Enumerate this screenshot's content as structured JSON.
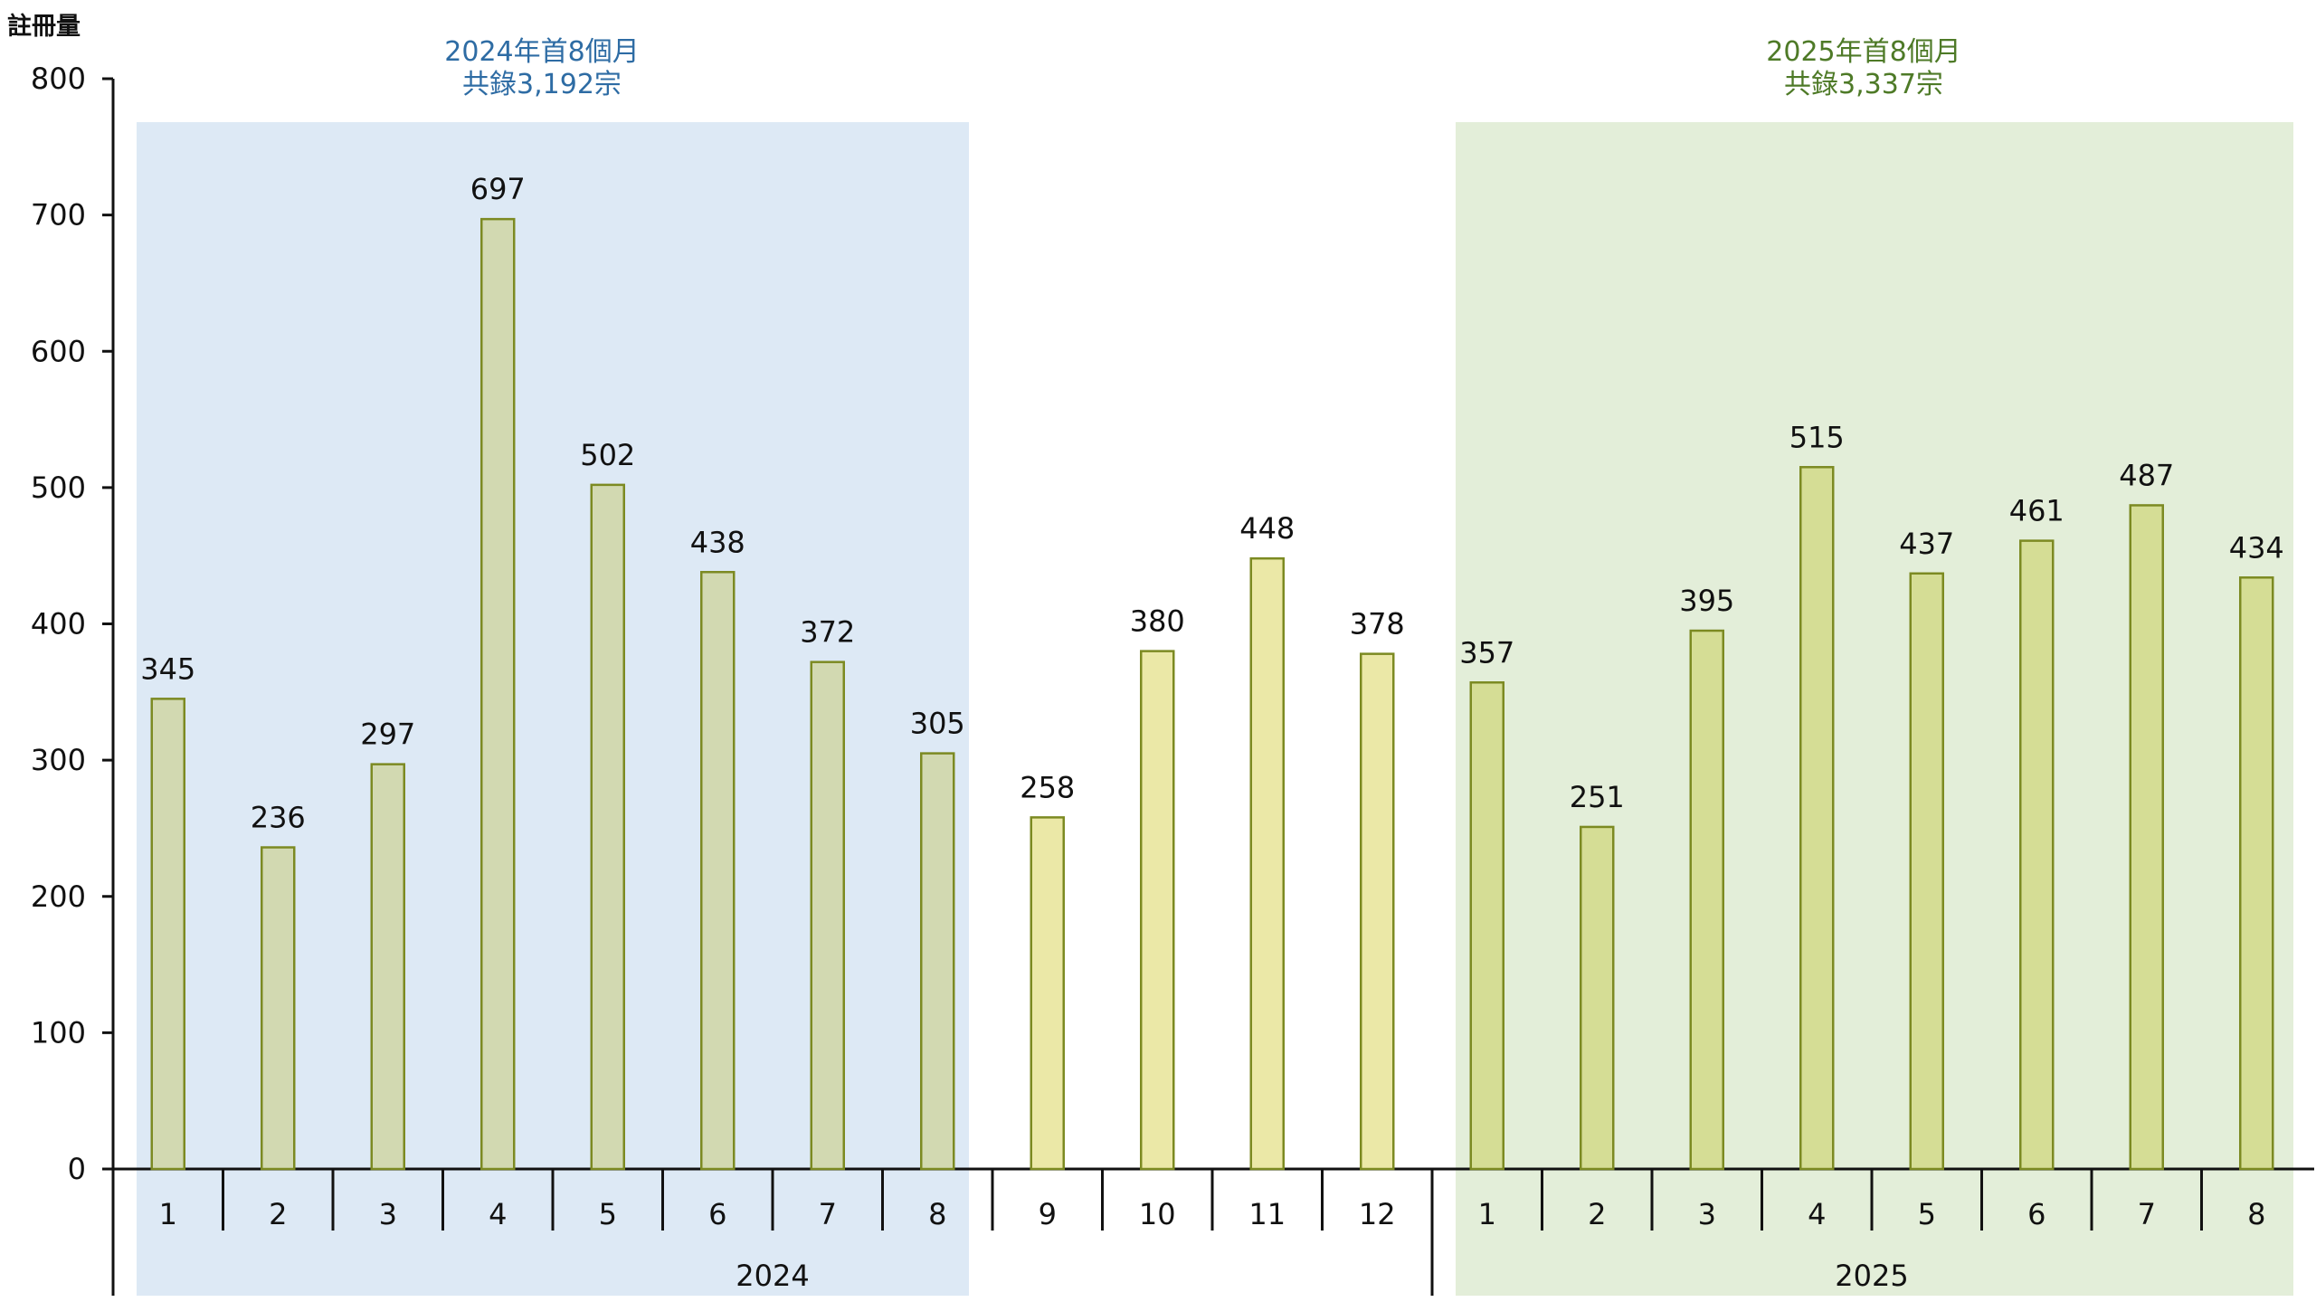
{
  "chart_data": {
    "type": "bar",
    "ylabel": "註冊量",
    "ylim": [
      0,
      800
    ],
    "yticks": [
      0,
      100,
      200,
      300,
      400,
      500,
      600,
      700,
      800
    ],
    "grid": false,
    "legend": "none",
    "categories": [
      "1",
      "2",
      "3",
      "4",
      "5",
      "6",
      "7",
      "8",
      "9",
      "10",
      "11",
      "12",
      "1",
      "2",
      "3",
      "4",
      "5",
      "6",
      "7",
      "8"
    ],
    "values": [
      345,
      236,
      297,
      697,
      502,
      438,
      372,
      305,
      258,
      380,
      448,
      378,
      357,
      251,
      395,
      515,
      437,
      461,
      487,
      434
    ],
    "year_groups": [
      {
        "label": "2024",
        "start": 0,
        "end": 11
      },
      {
        "label": "2025",
        "start": 12,
        "end": 19
      }
    ],
    "highlight_regions": [
      {
        "start": 0,
        "end": 7,
        "line1": "2024年首8個月",
        "line2": "共錄3,192宗",
        "fill": "#dde9f5",
        "text_color": "#2e6ca4"
      },
      {
        "start": 12,
        "end": 19,
        "line1": "2025年首8個月",
        "line2": "共錄3,337宗",
        "fill": "#e3eed9",
        "text_color": "#4e7a27"
      }
    ],
    "bar_colors": {
      "2024_first8": "#d2d9b1",
      "2024_last4": "#ebe8a7",
      "2025": "#d5dd95"
    },
    "bar_stroke": "#7c8a22"
  }
}
